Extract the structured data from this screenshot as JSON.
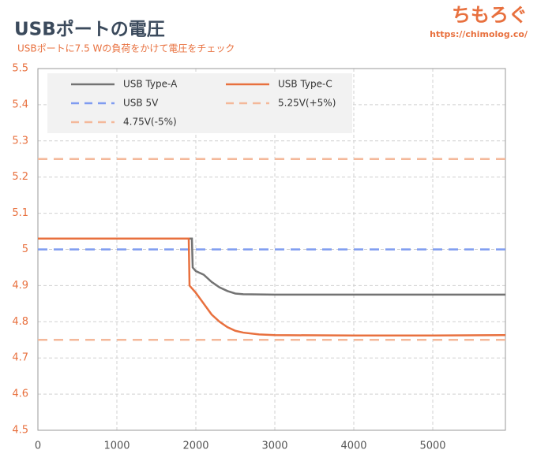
{
  "chart_data": {
    "type": "line",
    "title": "USBポートの電圧",
    "subtitle": "USBポートに7.5 Wの負荷をかけて電圧をチェック",
    "logo": "ちもろぐ",
    "url": "https://chimolog.co/",
    "xlim": [
      0,
      5920
    ],
    "xticks": [
      0,
      1000,
      2000,
      3000,
      4000,
      5000
    ],
    "ylim": [
      4.5,
      5.5
    ],
    "yticks": [
      4.5,
      4.6,
      4.7,
      4.8,
      4.9,
      5,
      5.1,
      5.2,
      5.3,
      5.4,
      5.5
    ],
    "grid": true,
    "legend": "upper left",
    "series": [
      {
        "name": "USB Type-A",
        "color": "#737373",
        "dashed": false,
        "x": [
          0,
          500,
          1000,
          1500,
          1940,
          1950,
          1960,
          2000,
          2100,
          2200,
          2300,
          2400,
          2500,
          2600,
          3000,
          4000,
          5000,
          5920
        ],
        "values": [
          5.03,
          5.03,
          5.03,
          5.03,
          5.03,
          5.03,
          4.95,
          4.94,
          4.93,
          4.91,
          4.895,
          4.885,
          4.878,
          4.876,
          4.875,
          4.875,
          4.875,
          4.875
        ]
      },
      {
        "name": "USB Type-C",
        "color": "#e8703e",
        "dashed": false,
        "x": [
          0,
          500,
          1000,
          1500,
          1910,
          1920,
          2000,
          2100,
          2200,
          2300,
          2400,
          2500,
          2600,
          2800,
          3000,
          4000,
          5000,
          5920
        ],
        "values": [
          5.03,
          5.03,
          5.03,
          5.03,
          5.03,
          4.9,
          4.88,
          4.85,
          4.82,
          4.8,
          4.785,
          4.775,
          4.77,
          4.765,
          4.763,
          4.762,
          4.762,
          4.763
        ]
      },
      {
        "name": "USB 5V",
        "color": "#7f9cf0",
        "dashed": true,
        "x": [
          0,
          5920
        ],
        "values": [
          5,
          5
        ]
      },
      {
        "name": "5.25V(+5%)",
        "color": "#f4b89a",
        "dashed": true,
        "x": [
          0,
          5920
        ],
        "values": [
          5.25,
          5.25
        ]
      },
      {
        "name": "4.75V(-5%)",
        "color": "#f4b89a",
        "dashed": true,
        "x": [
          0,
          5920
        ],
        "values": [
          4.75,
          4.75
        ]
      }
    ]
  }
}
